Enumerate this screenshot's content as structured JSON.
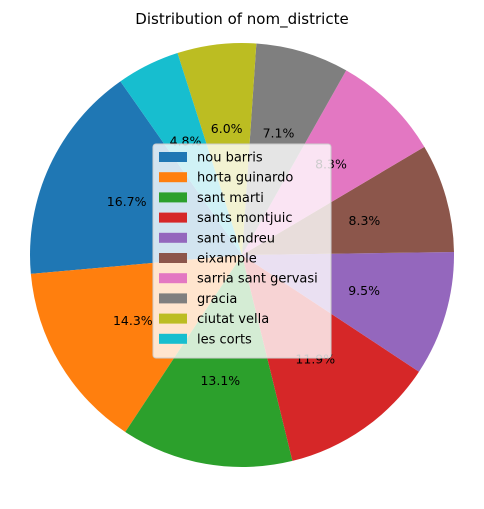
{
  "chart_data": {
    "type": "pie",
    "title": "Distribution of nom_districte",
    "start_angle_deg": 125,
    "direction": "counterclockwise",
    "legend_position": "center",
    "slices": [
      {
        "label": "nou barris",
        "value": 16.7,
        "value_label": "16.7%",
        "color": "#1f77b4"
      },
      {
        "label": "horta guinardo",
        "value": 14.3,
        "value_label": "14.3%",
        "color": "#ff7f0e"
      },
      {
        "label": "sant marti",
        "value": 13.1,
        "value_label": "13.1%",
        "color": "#2ca02c"
      },
      {
        "label": "sants montjuic",
        "value": 11.9,
        "value_label": "11.9%",
        "color": "#d62728"
      },
      {
        "label": "sant andreu",
        "value": 9.5,
        "value_label": "9.5%",
        "color": "#9467bd"
      },
      {
        "label": "eixample",
        "value": 8.3,
        "value_label": "8.3%",
        "color": "#8c564b"
      },
      {
        "label": "sarria sant gervasi",
        "value": 8.3,
        "value_label": "8.3%",
        "color": "#e377c2"
      },
      {
        "label": "gracia",
        "value": 7.1,
        "value_label": "7.1%",
        "color": "#7f7f7f"
      },
      {
        "label": "ciutat vella",
        "value": 6.0,
        "value_label": "6.0%",
        "color": "#bcbd22"
      },
      {
        "label": "les corts",
        "value": 4.8,
        "value_label": "4.8%",
        "color": "#17becf"
      }
    ]
  }
}
